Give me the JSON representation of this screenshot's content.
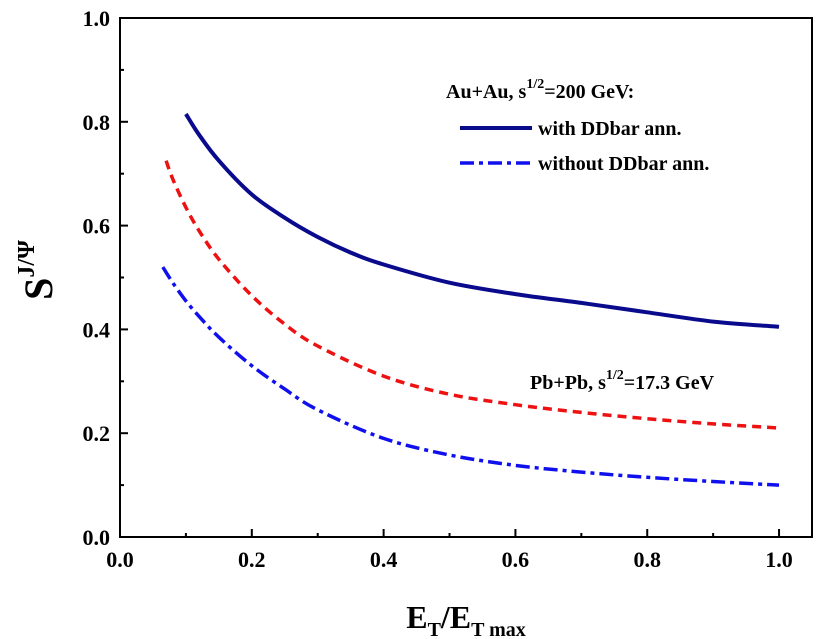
{
  "chart_data": {
    "type": "line",
    "title": "",
    "xlabel": "E_T/E_T max",
    "xlabel_parts": {
      "main": "E",
      "sub1": "T",
      "slash": "/E",
      "sub2": "T max"
    },
    "ylabel": "S^J/Ψ",
    "ylabel_parts": {
      "main": "S",
      "sup": "J/Ψ"
    },
    "xlim": [
      0.0,
      1.05
    ],
    "ylim": [
      0.0,
      1.0
    ],
    "x_ticks": [
      {
        "value": 0.0,
        "label": "0.0"
      },
      {
        "value": 0.2,
        "label": "0.2"
      },
      {
        "value": 0.4,
        "label": "0.4"
      },
      {
        "value": 0.6,
        "label": "0.6"
      },
      {
        "value": 0.8,
        "label": "0.8"
      },
      {
        "value": 1.0,
        "label": "1.0"
      }
    ],
    "y_ticks": [
      {
        "value": 0.0,
        "label": "0.0"
      },
      {
        "value": 0.2,
        "label": "0.2"
      },
      {
        "value": 0.4,
        "label": "0.4"
      },
      {
        "value": 0.6,
        "label": "0.6"
      },
      {
        "value": 0.8,
        "label": "0.8"
      },
      {
        "value": 1.0,
        "label": "1.0"
      }
    ],
    "annotations": {
      "auau": {
        "base": "Au+Au, s",
        "sup": "1/2",
        "rest": "=200 GeV:"
      },
      "pbpb": {
        "base": "Pb+Pb, s",
        "sup": "1/2",
        "rest": "=17.3 GeV"
      }
    },
    "legend": {
      "placement": "top-right"
    },
    "series": [
      {
        "name": "with DDbar ann.",
        "group": "Au+Au",
        "color": "#0a0a8c",
        "style": "solid",
        "in_legend": true,
        "x": [
          0.1,
          0.12,
          0.15,
          0.2,
          0.25,
          0.3,
          0.35,
          0.4,
          0.5,
          0.6,
          0.7,
          0.8,
          0.9,
          1.0
        ],
        "y": [
          0.815,
          0.775,
          0.725,
          0.66,
          0.615,
          0.578,
          0.548,
          0.525,
          0.49,
          0.468,
          0.451,
          0.433,
          0.415,
          0.405
        ]
      },
      {
        "name": "without DDbar ann.",
        "group": "Au+Au",
        "color": "#1010ee",
        "style": "dashdot",
        "in_legend": true,
        "x": [
          0.065,
          0.08,
          0.1,
          0.12,
          0.15,
          0.2,
          0.25,
          0.3,
          0.4,
          0.5,
          0.6,
          0.7,
          0.8,
          0.9,
          1.0
        ],
        "y": [
          0.52,
          0.49,
          0.455,
          0.425,
          0.385,
          0.33,
          0.285,
          0.245,
          0.19,
          0.158,
          0.138,
          0.125,
          0.115,
          0.107,
          0.1
        ]
      },
      {
        "name": "Pb+Pb",
        "group": "Pb+Pb",
        "color": "#ee1111",
        "style": "dashed",
        "in_legend": false,
        "x": [
          0.07,
          0.08,
          0.1,
          0.12,
          0.15,
          0.2,
          0.25,
          0.3,
          0.4,
          0.5,
          0.6,
          0.7,
          0.8,
          0.9,
          1.0
        ],
        "y": [
          0.725,
          0.69,
          0.635,
          0.59,
          0.535,
          0.465,
          0.41,
          0.368,
          0.31,
          0.275,
          0.255,
          0.24,
          0.228,
          0.218,
          0.21
        ]
      }
    ]
  }
}
